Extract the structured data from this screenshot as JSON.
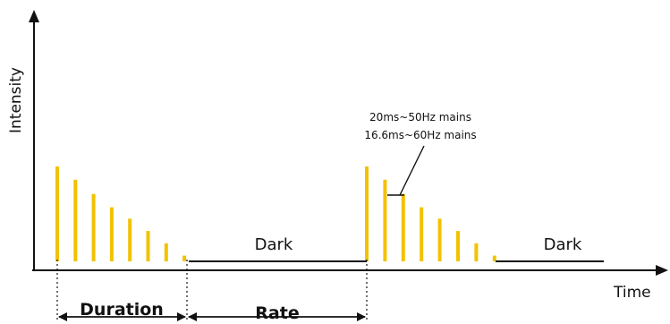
{
  "axes": {
    "y_label": "Intensity",
    "x_label": "Time"
  },
  "labels": {
    "dark_1": "Dark",
    "dark_2": "Dark",
    "duration": "Duration",
    "rate": "Rate"
  },
  "annotation": {
    "line1": "20ms~50Hz mains",
    "line2": "16.6ms~60Hz mains"
  },
  "colors": {
    "pulse": "#f2c200",
    "ink": "#111111"
  },
  "pulse_groups": [
    {
      "relative_heights": [
        1.0,
        0.86,
        0.71,
        0.57,
        0.45,
        0.32,
        0.19,
        0.06
      ]
    },
    {
      "relative_heights": [
        1.0,
        0.86,
        0.71,
        0.57,
        0.45,
        0.32,
        0.19,
        0.06
      ]
    }
  ]
}
